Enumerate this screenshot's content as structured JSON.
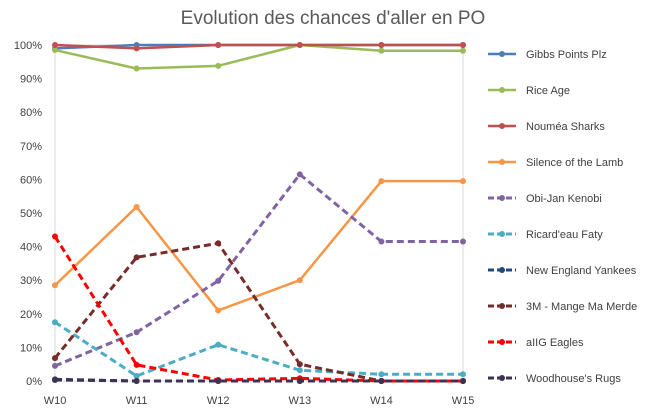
{
  "chart_data": {
    "type": "line",
    "title": "Evolution des chances d'aller en PO",
    "xlabel": "",
    "ylabel": "",
    "categories": [
      "W10",
      "W11",
      "W12",
      "W13",
      "W14",
      "W15"
    ],
    "ylim": [
      0,
      100
    ],
    "y_ticks": [
      "0%",
      "10%",
      "20%",
      "30%",
      "40%",
      "50%",
      "60%",
      "70%",
      "80%",
      "90%",
      "100%"
    ],
    "grid": false,
    "legend_position": "right",
    "series": [
      {
        "name": "Gibbs Points Plz",
        "color": "#4a7ebb",
        "dash": "solid",
        "values": [
          99,
          100,
          100,
          100,
          100,
          100
        ]
      },
      {
        "name": "Rice Age",
        "color": "#9bbb59",
        "dash": "solid",
        "values": [
          98.5,
          93,
          93.8,
          100,
          98.3,
          98.3
        ]
      },
      {
        "name": "Nouméa Sharks",
        "color": "#c0504d",
        "dash": "solid",
        "values": [
          100,
          99,
          100,
          100,
          100,
          100
        ]
      },
      {
        "name": "Silence of the Lamb",
        "color": "#f79646",
        "dash": "solid",
        "values": [
          28.5,
          51.8,
          21,
          30,
          59.5,
          59.5
        ]
      },
      {
        "name": "Obi-Jan Kenobi",
        "color": "#8064a2",
        "dash": "dashed",
        "values": [
          4.5,
          14.5,
          29.8,
          61.5,
          41.5,
          41.5
        ]
      },
      {
        "name": "Ricard'eau Faty",
        "color": "#4bacc6",
        "dash": "dashed",
        "values": [
          17.5,
          1.5,
          10.8,
          3.2,
          2,
          2
        ]
      },
      {
        "name": "New England Yankees",
        "color": "#1f497d",
        "dash": "dashed",
        "values": [
          0.3,
          0,
          0,
          0,
          0,
          0
        ]
      },
      {
        "name": "3M - Mange Ma Merde",
        "color": "#772c2a",
        "dash": "dashed",
        "values": [
          6.8,
          36.8,
          41,
          5,
          0,
          0
        ]
      },
      {
        "name": "aIIG Eagles",
        "color": "#ff0000",
        "dash": "dashed",
        "values": [
          43,
          4.8,
          0.3,
          0.8,
          0,
          0
        ]
      },
      {
        "name": "Woodhouse's Rugs",
        "color": "#3f3151",
        "dash": "dashed",
        "values": [
          0.5,
          0,
          0,
          0,
          0,
          0
        ]
      }
    ]
  }
}
